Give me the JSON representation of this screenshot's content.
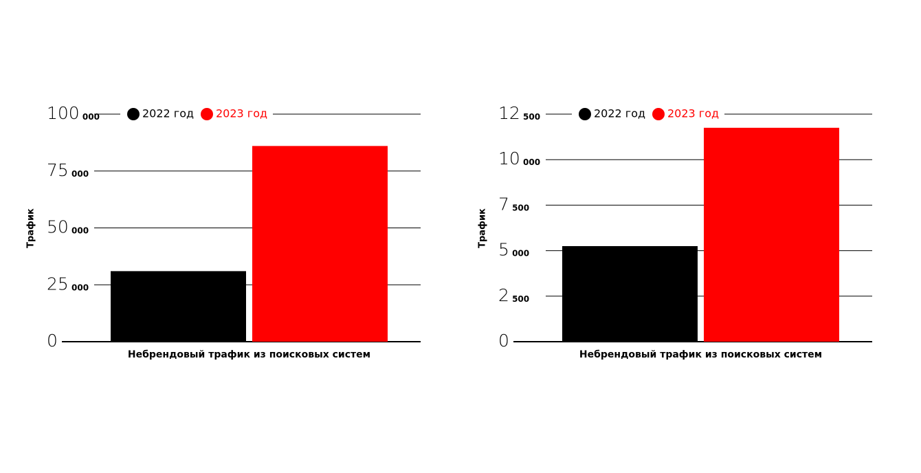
{
  "chart_data": [
    {
      "type": "bar",
      "ylabel": "Трафик",
      "categories": [
        "Небрендовый трафик из поисковых систем"
      ],
      "series": [
        {
          "name": "2022 год",
          "color": "#000000",
          "values": [
            31000
          ]
        },
        {
          "name": "2023 год",
          "color": "#ff0000",
          "values": [
            86000
          ]
        }
      ],
      "ylim": [
        0,
        100000
      ],
      "yticks": [
        0,
        {
          "value": 25000,
          "label": "25 000"
        },
        {
          "value": 50000,
          "label": "50 000"
        },
        {
          "value": 75000,
          "label": "75 000"
        },
        {
          "value": 100000,
          "label": "100 000"
        }
      ],
      "grid": true,
      "legend": "top"
    },
    {
      "type": "bar",
      "ylabel": "Трафик",
      "categories": [
        "Небрендовый трафик из поисковых систем"
      ],
      "series": [
        {
          "name": "2022 год",
          "color": "#000000",
          "values": [
            5250
          ]
        },
        {
          "name": "2023 год",
          "color": "#ff0000",
          "values": [
            11750
          ]
        }
      ],
      "ylim": [
        0,
        12500
      ],
      "yticks": [
        0,
        {
          "value": 2500,
          "label": "2 500"
        },
        {
          "value": 5000,
          "label": "5 000"
        },
        {
          "value": 7500,
          "label": "7 500"
        },
        {
          "value": 10000,
          "label": "10 000"
        },
        {
          "value": 12500,
          "label": "12 500"
        }
      ],
      "grid": true,
      "legend": "top"
    }
  ]
}
